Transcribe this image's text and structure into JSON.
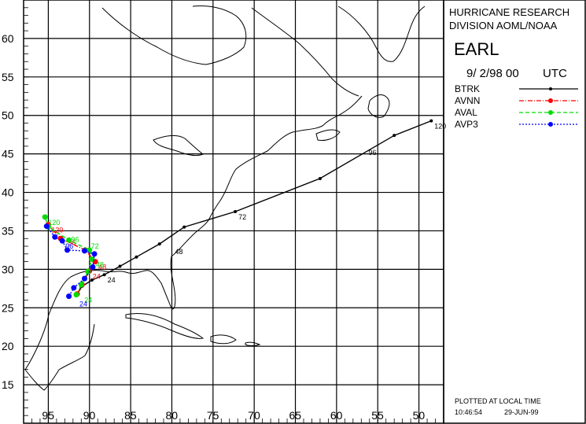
{
  "header": {
    "org_line1": "HURRICANE RESEARCH",
    "org_line2": "DIVISION AOML/NOAA",
    "storm_name": "EARL",
    "init_time": "9/ 2/98 00",
    "time_zone": "UTC"
  },
  "legend": [
    {
      "name": "BTRK",
      "color": "#000000",
      "dash": "solid"
    },
    {
      "name": "AVNN",
      "color": "#ff0000",
      "dash": "dashdot"
    },
    {
      "name": "AVAL",
      "color": "#00dd00",
      "dash": "dashed"
    },
    {
      "name": "AVP3",
      "color": "#0000ff",
      "dash": "dotted"
    }
  ],
  "footer": {
    "line1": "PLOTTED AT LOCAL TIME",
    "time": "10:46:54",
    "date": "29-JUN-99"
  },
  "chart_data": {
    "type": "map-track",
    "lat_labels": [
      "15",
      "20",
      "25",
      "30",
      "35",
      "40",
      "45",
      "50",
      "55",
      "60"
    ],
    "lon_labels": [
      "95",
      "90",
      "85",
      "80",
      "75",
      "70",
      "65",
      "60",
      "55",
      "50"
    ],
    "lon_minor_labels": [
      "",
      "",
      "",
      "",
      "",
      "",
      "",
      "",
      "",
      ""
    ],
    "grid": true,
    "lat_range": [
      10,
      65
    ],
    "lon_range": [
      -98,
      -47
    ],
    "series": [
      {
        "name": "BTRK",
        "color": "#000000",
        "points": [
          [
            -91.6,
            26.6
          ],
          [
            -90.9,
            27.8
          ],
          [
            -89.7,
            28.6
          ],
          [
            -88.2,
            29.3
          ],
          [
            -86.3,
            30.4
          ],
          [
            -84.3,
            31.6
          ],
          [
            -81.5,
            33.3
          ],
          [
            -78.5,
            35.5
          ],
          [
            -72.3,
            37.5
          ],
          [
            -62.0,
            41.8
          ],
          [
            -53.0,
            47.4
          ],
          [
            -48.5,
            49.3
          ]
        ],
        "labels": [
          {
            "text": "24",
            "lon": -88.2,
            "lat": 29.3
          },
          {
            "text": "48",
            "lon": -80.0,
            "lat": 33.0
          },
          {
            "text": "72",
            "lon": -72.3,
            "lat": 37.5
          },
          {
            "text": "96",
            "lon": -56.5,
            "lat": 45.9
          },
          {
            "text": "120",
            "lon": -48.5,
            "lat": 49.3
          }
        ]
      },
      {
        "name": "AVNN",
        "color": "#ff0000",
        "points": [
          [
            -91.5,
            26.8
          ],
          [
            -90.9,
            28.0
          ],
          [
            -90.0,
            29.8
          ],
          [
            -89.3,
            31.0
          ],
          [
            -90.5,
            32.5
          ],
          [
            -93.5,
            34.0
          ],
          [
            -95.0,
            35.8
          ]
        ],
        "labels": [
          {
            "text": "24",
            "lon": -90.0,
            "lat": 29.8
          },
          {
            "text": "48",
            "lon": -89.3,
            "lat": 31.0
          },
          {
            "text": "96",
            "lon": -93.0,
            "lat": 34.2
          },
          {
            "text": "120",
            "lon": -95.0,
            "lat": 35.8
          }
        ]
      },
      {
        "name": "AVAL",
        "color": "#00dd00",
        "points": [
          [
            -91.6,
            26.7
          ],
          [
            -91.0,
            28.0
          ],
          [
            -90.2,
            29.7
          ],
          [
            -89.7,
            31.3
          ],
          [
            -90.0,
            32.5
          ],
          [
            -92.5,
            33.8
          ],
          [
            -95.0,
            35.5
          ],
          [
            -95.4,
            36.8
          ]
        ],
        "labels": [
          {
            "text": "24",
            "lon": -91.0,
            "lat": 26.7
          },
          {
            "text": "48",
            "lon": -89.6,
            "lat": 31.3
          },
          {
            "text": "72",
            "lon": -90.2,
            "lat": 33.7
          },
          {
            "text": "96",
            "lon": -92.6,
            "lat": 34.6
          },
          {
            "text": "120",
            "lon": -95.4,
            "lat": 36.8
          }
        ]
      },
      {
        "name": "AVP3",
        "color": "#0000ff",
        "points": [
          [
            -92.5,
            26.5
          ],
          [
            -91.9,
            27.6
          ],
          [
            -90.6,
            28.8
          ],
          [
            -89.6,
            30.3
          ],
          [
            -89.4,
            32.0
          ],
          [
            -90.6,
            32.4
          ],
          [
            -92.7,
            32.5
          ],
          [
            -93.3,
            33.7
          ],
          [
            -94.2,
            34.2
          ],
          [
            -95.2,
            35.6
          ]
        ],
        "labels": [
          {
            "text": "24",
            "lon": -91.6,
            "lat": 26.2
          },
          {
            "text": "96",
            "lon": -93.3,
            "lat": 33.7
          }
        ]
      }
    ]
  }
}
